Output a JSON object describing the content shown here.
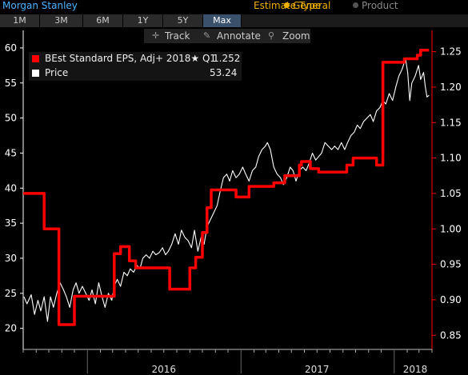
{
  "header": {
    "title": "Morgan Stanley",
    "estimate_type_label": "Estimate Type",
    "options": [
      "General",
      "Product"
    ],
    "selected_option": "General"
  },
  "ranges": {
    "buttons": [
      "1M",
      "3M",
      "6M",
      "1Y",
      "5Y",
      "Max"
    ],
    "active": "Max"
  },
  "toolbar": {
    "track_label": "Track",
    "annotate_label": "Annotate",
    "zoom_label": "Zoom"
  },
  "legend": {
    "eps_label": "BEst Standard EPS, Adj+ 2018★ Q1",
    "eps_value": "1.252",
    "price_label": "Price",
    "price_value": "53.24"
  },
  "colors": {
    "eps": "#ff0000",
    "price": "#ffffff",
    "left_axis": "#ffffff",
    "right_axis": "#ff0000",
    "title": "#4db3ff",
    "estimate": "#f0b000"
  },
  "chart_data": {
    "type": "line",
    "title": "",
    "x_tick_labels": [
      "2016",
      "2017",
      "2018"
    ],
    "x_range": [
      "2015-08",
      "2018-04"
    ],
    "y_left": {
      "label": "",
      "ticks": [
        20,
        25,
        30,
        35,
        40,
        45,
        50,
        55,
        60
      ],
      "range": [
        17,
        62.5
      ]
    },
    "y_right": {
      "label": "",
      "ticks": [
        0.85,
        0.9,
        0.95,
        1.0,
        1.05,
        1.1,
        1.15,
        1.2,
        1.25
      ],
      "range": [
        0.83,
        1.28
      ]
    },
    "grid": false,
    "series": [
      {
        "name": "BEst Standard EPS, Adj+ 2018★ Q1",
        "axis": "right",
        "step": true,
        "points": [
          [
            "2015-08-01",
            1.05
          ],
          [
            "2015-09-20",
            1.05
          ],
          [
            "2015-09-20",
            1.0
          ],
          [
            "2015-10-25",
            1.0
          ],
          [
            "2015-10-25",
            0.865
          ],
          [
            "2015-12-01",
            0.865
          ],
          [
            "2015-12-01",
            0.905
          ],
          [
            "2016-03-05",
            0.905
          ],
          [
            "2016-03-05",
            0.965
          ],
          [
            "2016-03-20",
            0.965
          ],
          [
            "2016-03-20",
            0.975
          ],
          [
            "2016-04-10",
            0.975
          ],
          [
            "2016-04-10",
            0.955
          ],
          [
            "2016-04-25",
            0.955
          ],
          [
            "2016-04-25",
            0.945
          ],
          [
            "2016-07-15",
            0.945
          ],
          [
            "2016-07-15",
            0.915
          ],
          [
            "2016-09-01",
            0.915
          ],
          [
            "2016-09-01",
            0.945
          ],
          [
            "2016-09-15",
            0.945
          ],
          [
            "2016-09-15",
            0.96
          ],
          [
            "2016-10-01",
            0.96
          ],
          [
            "2016-10-01",
            0.995
          ],
          [
            "2016-10-12",
            0.995
          ],
          [
            "2016-10-12",
            1.03
          ],
          [
            "2016-10-22",
            1.03
          ],
          [
            "2016-10-22",
            1.055
          ],
          [
            "2016-12-20",
            1.055
          ],
          [
            "2016-12-20",
            1.045
          ],
          [
            "2017-01-20",
            1.045
          ],
          [
            "2017-01-20",
            1.06
          ],
          [
            "2017-03-20",
            1.06
          ],
          [
            "2017-03-20",
            1.065
          ],
          [
            "2017-04-15",
            1.065
          ],
          [
            "2017-04-15",
            1.075
          ],
          [
            "2017-05-20",
            1.075
          ],
          [
            "2017-05-20",
            1.09
          ],
          [
            "2017-05-25",
            1.09
          ],
          [
            "2017-05-25",
            1.095
          ],
          [
            "2017-06-15",
            1.095
          ],
          [
            "2017-06-15",
            1.085
          ],
          [
            "2017-07-05",
            1.085
          ],
          [
            "2017-07-05",
            1.08
          ],
          [
            "2017-09-10",
            1.08
          ],
          [
            "2017-09-10",
            1.09
          ],
          [
            "2017-09-25",
            1.09
          ],
          [
            "2017-09-25",
            1.1
          ],
          [
            "2017-11-20",
            1.1
          ],
          [
            "2017-11-20",
            1.09
          ],
          [
            "2017-12-05",
            1.09
          ],
          [
            "2017-12-05",
            1.235
          ],
          [
            "2018-01-25",
            1.235
          ],
          [
            "2018-01-25",
            1.24
          ],
          [
            "2018-02-25",
            1.24
          ],
          [
            "2018-02-25",
            1.245
          ],
          [
            "2018-03-05",
            1.245
          ],
          [
            "2018-03-05",
            1.252
          ],
          [
            "2018-03-25",
            1.252
          ]
        ]
      },
      {
        "name": "Price",
        "axis": "left",
        "step": false,
        "points": [
          [
            "2015-08-03",
            24.5
          ],
          [
            "2015-08-10",
            23.5
          ],
          [
            "2015-08-20",
            24.8
          ],
          [
            "2015-08-28",
            22.0
          ],
          [
            "2015-09-05",
            24.0
          ],
          [
            "2015-09-12",
            22.5
          ],
          [
            "2015-09-20",
            24.5
          ],
          [
            "2015-09-28",
            21.0
          ],
          [
            "2015-10-05",
            24.5
          ],
          [
            "2015-10-12",
            23.0
          ],
          [
            "2015-10-20",
            25.0
          ],
          [
            "2015-10-28",
            26.5
          ],
          [
            "2015-11-05",
            25.5
          ],
          [
            "2015-11-12",
            24.5
          ],
          [
            "2015-11-20",
            23.0
          ],
          [
            "2015-11-28",
            25.5
          ],
          [
            "2015-12-05",
            26.5
          ],
          [
            "2015-12-12",
            25.0
          ],
          [
            "2015-12-20",
            26.0
          ],
          [
            "2015-12-28",
            25.0
          ],
          [
            "2016-01-05",
            24.0
          ],
          [
            "2016-01-12",
            25.5
          ],
          [
            "2016-01-20",
            23.5
          ],
          [
            "2016-01-28",
            26.5
          ],
          [
            "2016-02-05",
            24.5
          ],
          [
            "2016-02-12",
            23.0
          ],
          [
            "2016-02-20",
            25.0
          ],
          [
            "2016-02-28",
            24.0
          ],
          [
            "2016-03-05",
            26.0
          ],
          [
            "2016-03-12",
            27.0
          ],
          [
            "2016-03-20",
            26.0
          ],
          [
            "2016-03-28",
            28.0
          ],
          [
            "2016-04-05",
            27.5
          ],
          [
            "2016-04-12",
            28.5
          ],
          [
            "2016-04-20",
            28.0
          ],
          [
            "2016-04-28",
            29.0
          ],
          [
            "2016-05-05",
            28.5
          ],
          [
            "2016-05-12",
            30.0
          ],
          [
            "2016-05-20",
            30.5
          ],
          [
            "2016-05-28",
            30.0
          ],
          [
            "2016-06-05",
            31.0
          ],
          [
            "2016-06-12",
            30.5
          ],
          [
            "2016-06-20",
            30.8
          ],
          [
            "2016-06-28",
            31.5
          ],
          [
            "2016-07-05",
            30.5
          ],
          [
            "2016-07-12",
            31.0
          ],
          [
            "2016-07-20",
            32.0
          ],
          [
            "2016-07-28",
            33.5
          ],
          [
            "2016-08-05",
            32.0
          ],
          [
            "2016-08-12",
            34.0
          ],
          [
            "2016-08-20",
            33.0
          ],
          [
            "2016-08-28",
            32.5
          ],
          [
            "2016-09-05",
            31.5
          ],
          [
            "2016-09-12",
            34.0
          ],
          [
            "2016-09-20",
            31.0
          ],
          [
            "2016-09-28",
            33.0
          ],
          [
            "2016-10-05",
            32.0
          ],
          [
            "2016-10-12",
            34.5
          ],
          [
            "2016-10-20",
            35.5
          ],
          [
            "2016-10-28",
            36.5
          ],
          [
            "2016-11-05",
            37.5
          ],
          [
            "2016-11-12",
            39.5
          ],
          [
            "2016-11-20",
            41.5
          ],
          [
            "2016-11-28",
            42.0
          ],
          [
            "2016-12-05",
            41.0
          ],
          [
            "2016-12-12",
            42.5
          ],
          [
            "2016-12-20",
            41.5
          ],
          [
            "2016-12-28",
            42.0
          ],
          [
            "2017-01-05",
            43.0
          ],
          [
            "2017-01-12",
            42.0
          ],
          [
            "2017-01-20",
            41.0
          ],
          [
            "2017-01-28",
            42.5
          ],
          [
            "2017-02-05",
            43.0
          ],
          [
            "2017-02-12",
            44.5
          ],
          [
            "2017-02-20",
            45.5
          ],
          [
            "2017-02-28",
            46.0
          ],
          [
            "2017-03-05",
            46.5
          ],
          [
            "2017-03-12",
            45.5
          ],
          [
            "2017-03-20",
            43.0
          ],
          [
            "2017-03-28",
            42.0
          ],
          [
            "2017-04-05",
            41.5
          ],
          [
            "2017-04-12",
            40.5
          ],
          [
            "2017-04-20",
            41.5
          ],
          [
            "2017-04-28",
            43.0
          ],
          [
            "2017-05-05",
            42.5
          ],
          [
            "2017-05-12",
            41.0
          ],
          [
            "2017-05-20",
            42.5
          ],
          [
            "2017-05-28",
            43.0
          ],
          [
            "2017-06-05",
            42.5
          ],
          [
            "2017-06-12",
            43.5
          ],
          [
            "2017-06-20",
            45.0
          ],
          [
            "2017-06-28",
            44.0
          ],
          [
            "2017-07-05",
            44.5
          ],
          [
            "2017-07-12",
            45.0
          ],
          [
            "2017-07-20",
            46.5
          ],
          [
            "2017-07-28",
            46.0
          ],
          [
            "2017-08-05",
            45.5
          ],
          [
            "2017-08-12",
            46.0
          ],
          [
            "2017-08-20",
            45.5
          ],
          [
            "2017-08-28",
            46.5
          ],
          [
            "2017-09-05",
            45.5
          ],
          [
            "2017-09-12",
            46.5
          ],
          [
            "2017-09-20",
            47.5
          ],
          [
            "2017-09-28",
            48.0
          ],
          [
            "2017-10-05",
            49.0
          ],
          [
            "2017-10-12",
            48.5
          ],
          [
            "2017-10-20",
            49.5
          ],
          [
            "2017-10-28",
            50.0
          ],
          [
            "2017-11-05",
            50.5
          ],
          [
            "2017-11-12",
            49.5
          ],
          [
            "2017-11-20",
            51.0
          ],
          [
            "2017-11-28",
            51.5
          ],
          [
            "2017-12-05",
            52.5
          ],
          [
            "2017-12-12",
            52.0
          ],
          [
            "2017-12-20",
            53.5
          ],
          [
            "2017-12-28",
            52.5
          ],
          [
            "2018-01-05",
            54.5
          ],
          [
            "2018-01-12",
            56.0
          ],
          [
            "2018-01-20",
            57.0
          ],
          [
            "2018-01-28",
            58.5
          ],
          [
            "2018-02-02",
            56.5
          ],
          [
            "2018-02-07",
            52.5
          ],
          [
            "2018-02-12",
            55.0
          ],
          [
            "2018-02-20",
            56.0
          ],
          [
            "2018-02-28",
            57.5
          ],
          [
            "2018-03-05",
            55.5
          ],
          [
            "2018-03-12",
            56.5
          ],
          [
            "2018-03-16",
            54.5
          ],
          [
            "2018-03-20",
            53.0
          ],
          [
            "2018-03-25",
            53.24
          ]
        ]
      }
    ]
  }
}
